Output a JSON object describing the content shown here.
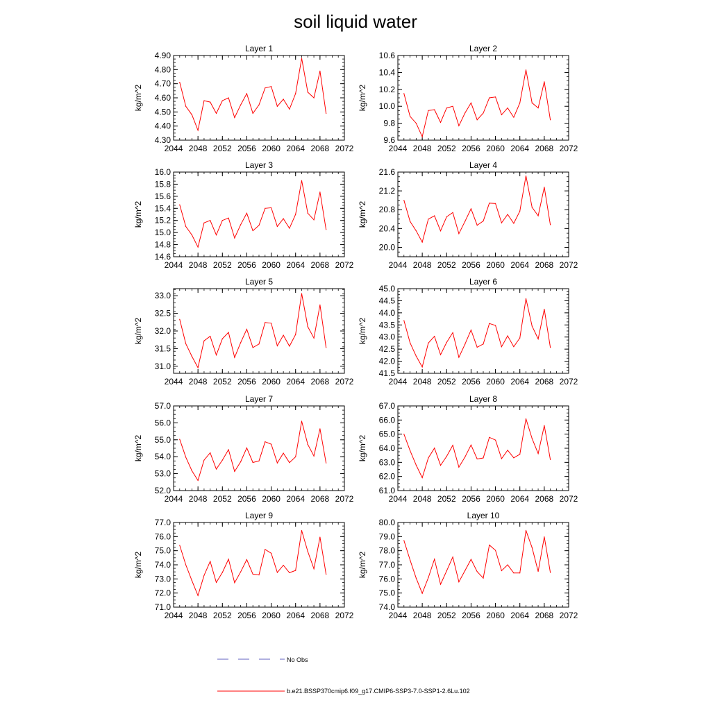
{
  "figure": {
    "title": "soil liquid water",
    "legend": [
      {
        "label": "No Obs",
        "color": "#6060c0",
        "dash": true
      },
      {
        "label": "b.e21.BSSP370cmip6.f09_g17.CMIP6-SSP3-7.0-SSP1-2.6Lu.102",
        "color": "#ff0000",
        "dash": false
      }
    ]
  },
  "chart_data": [
    {
      "type": "line",
      "title": "Layer 1",
      "ylabel": "kg/m^2",
      "xlim": [
        2044,
        2072
      ],
      "ylim": [
        4.3,
        4.9
      ],
      "xticks": [
        2044,
        2048,
        2052,
        2056,
        2060,
        2064,
        2068,
        2072
      ],
      "yticks": [
        "4.30",
        "4.40",
        "4.50",
        "4.60",
        "4.70",
        "4.80",
        "4.90"
      ],
      "color": "#ff0000",
      "x": [
        2045,
        2046,
        2047,
        2048,
        2049,
        2050,
        2051,
        2052,
        2053,
        2054,
        2055,
        2056,
        2057,
        2058,
        2059,
        2060,
        2061,
        2062,
        2063,
        2064,
        2065,
        2066,
        2067,
        2068,
        2069
      ],
      "values": [
        4.71,
        4.54,
        4.48,
        4.37,
        4.58,
        4.57,
        4.49,
        4.58,
        4.6,
        4.46,
        4.55,
        4.63,
        4.49,
        4.55,
        4.67,
        4.68,
        4.54,
        4.59,
        4.52,
        4.63,
        4.88,
        4.64,
        4.6,
        4.79,
        4.49
      ]
    },
    {
      "type": "line",
      "title": "Layer 2",
      "ylabel": "kg/m^2",
      "xlim": [
        2044,
        2072
      ],
      "ylim": [
        9.6,
        10.6
      ],
      "xticks": [
        2044,
        2048,
        2052,
        2056,
        2060,
        2064,
        2068,
        2072
      ],
      "yticks": [
        "9.6",
        "9.8",
        "10.0",
        "10.2",
        "10.4",
        "10.6"
      ],
      "color": "#ff0000",
      "x": [
        2045,
        2046,
        2047,
        2048,
        2049,
        2050,
        2051,
        2052,
        2053,
        2054,
        2055,
        2056,
        2057,
        2058,
        2059,
        2060,
        2061,
        2062,
        2063,
        2064,
        2065,
        2066,
        2067,
        2068,
        2069
      ],
      "values": [
        10.15,
        9.88,
        9.8,
        9.64,
        9.95,
        9.96,
        9.81,
        9.98,
        10.0,
        9.77,
        9.92,
        10.04,
        9.84,
        9.92,
        10.1,
        10.11,
        9.9,
        9.98,
        9.87,
        10.04,
        10.43,
        10.04,
        9.98,
        10.29,
        9.84
      ]
    },
    {
      "type": "line",
      "title": "Layer 3",
      "ylabel": "kg/m^2",
      "xlim": [
        2044,
        2072
      ],
      "ylim": [
        14.6,
        16.0
      ],
      "xticks": [
        2044,
        2048,
        2052,
        2056,
        2060,
        2064,
        2068,
        2072
      ],
      "yticks": [
        "14.6",
        "14.8",
        "15.0",
        "15.2",
        "15.4",
        "15.6",
        "15.8",
        "16.0"
      ],
      "color": "#ff0000",
      "x": [
        2045,
        2046,
        2047,
        2048,
        2049,
        2050,
        2051,
        2052,
        2053,
        2054,
        2055,
        2056,
        2057,
        2058,
        2059,
        2060,
        2061,
        2062,
        2063,
        2064,
        2065,
        2066,
        2067,
        2068,
        2069
      ],
      "values": [
        15.46,
        15.1,
        14.96,
        14.76,
        15.16,
        15.2,
        14.96,
        15.2,
        15.24,
        14.91,
        15.13,
        15.32,
        15.03,
        15.12,
        15.4,
        15.41,
        15.1,
        15.23,
        15.07,
        15.3,
        15.86,
        15.32,
        15.21,
        15.67,
        15.05
      ]
    },
    {
      "type": "line",
      "title": "Layer 4",
      "ylabel": "kg/m^2",
      "xlim": [
        2044,
        2072
      ],
      "ylim": [
        19.8,
        21.6
      ],
      "xticks": [
        2044,
        2048,
        2052,
        2056,
        2060,
        2064,
        2068,
        2072
      ],
      "yticks": [
        "20.0",
        "20.4",
        "20.8",
        "21.2",
        "21.6"
      ],
      "color": "#ff0000",
      "x": [
        2045,
        2046,
        2047,
        2048,
        2049,
        2050,
        2051,
        2052,
        2053,
        2054,
        2055,
        2056,
        2057,
        2058,
        2059,
        2060,
        2061,
        2062,
        2063,
        2064,
        2065,
        2066,
        2067,
        2068,
        2069
      ],
      "values": [
        21.0,
        20.55,
        20.35,
        20.11,
        20.6,
        20.67,
        20.35,
        20.65,
        20.74,
        20.29,
        20.55,
        20.82,
        20.47,
        20.56,
        20.94,
        20.93,
        20.52,
        20.7,
        20.51,
        20.77,
        21.52,
        20.85,
        20.67,
        21.28,
        20.48
      ]
    },
    {
      "type": "line",
      "title": "Layer 5",
      "ylabel": "kg/m^2",
      "xlim": [
        2044,
        2072
      ],
      "ylim": [
        30.8,
        33.2
      ],
      "xticks": [
        2044,
        2048,
        2052,
        2056,
        2060,
        2064,
        2068,
        2072
      ],
      "yticks": [
        "31.0",
        "31.5",
        "32.0",
        "32.5",
        "33.0"
      ],
      "color": "#ff0000",
      "x": [
        2045,
        2046,
        2047,
        2048,
        2049,
        2050,
        2051,
        2052,
        2053,
        2054,
        2055,
        2056,
        2057,
        2058,
        2059,
        2060,
        2061,
        2062,
        2063,
        2064,
        2065,
        2066,
        2067,
        2068,
        2069
      ],
      "values": [
        32.33,
        31.64,
        31.28,
        30.96,
        31.72,
        31.85,
        31.32,
        31.78,
        31.96,
        31.25,
        31.67,
        32.05,
        31.53,
        31.63,
        32.24,
        32.22,
        31.58,
        31.88,
        31.57,
        31.9,
        33.06,
        32.12,
        31.8,
        32.74,
        31.53
      ]
    },
    {
      "type": "line",
      "title": "Layer 6",
      "ylabel": "kg/m^2",
      "xlim": [
        2044,
        2072
      ],
      "ylim": [
        41.5,
        45.0
      ],
      "xticks": [
        2044,
        2048,
        2052,
        2056,
        2060,
        2064,
        2068,
        2072
      ],
      "yticks": [
        "41.5",
        "42.0",
        "42.5",
        "43.0",
        "43.5",
        "44.0",
        "44.5",
        "45.0"
      ],
      "color": "#ff0000",
      "x": [
        2045,
        2046,
        2047,
        2048,
        2049,
        2050,
        2051,
        2052,
        2053,
        2054,
        2055,
        2056,
        2057,
        2058,
        2059,
        2060,
        2061,
        2062,
        2063,
        2064,
        2065,
        2066,
        2067,
        2068,
        2069
      ],
      "values": [
        43.68,
        42.76,
        42.21,
        41.76,
        42.75,
        43.03,
        42.27,
        42.78,
        43.18,
        42.16,
        42.7,
        43.29,
        42.58,
        42.71,
        43.56,
        43.48,
        42.6,
        43.05,
        42.6,
        42.96,
        44.59,
        43.45,
        42.92,
        44.15,
        42.57
      ]
    },
    {
      "type": "line",
      "title": "Layer 7",
      "ylabel": "kg/m^2",
      "xlim": [
        2044,
        2072
      ],
      "ylim": [
        52.0,
        57.0
      ],
      "xticks": [
        2044,
        2048,
        2052,
        2056,
        2060,
        2064,
        2068,
        2072
      ],
      "yticks": [
        "52.0",
        "53.0",
        "54.0",
        "55.0",
        "56.0",
        "57.0"
      ],
      "color": "#ff0000",
      "x": [
        2045,
        2046,
        2047,
        2048,
        2049,
        2050,
        2051,
        2052,
        2053,
        2054,
        2055,
        2056,
        2057,
        2058,
        2059,
        2060,
        2061,
        2062,
        2063,
        2064,
        2065,
        2066,
        2067,
        2068,
        2069
      ],
      "values": [
        55.03,
        53.97,
        53.17,
        52.6,
        53.8,
        54.23,
        53.27,
        53.8,
        54.42,
        53.13,
        53.7,
        54.52,
        53.66,
        53.75,
        54.88,
        54.74,
        53.63,
        54.21,
        53.65,
        53.99,
        56.1,
        54.72,
        54.04,
        55.65,
        53.63
      ]
    },
    {
      "type": "line",
      "title": "Layer 8",
      "ylabel": "kg/m^2",
      "xlim": [
        2044,
        2072
      ],
      "ylim": [
        61.0,
        67.0
      ],
      "xticks": [
        2044,
        2048,
        2052,
        2056,
        2060,
        2064,
        2068,
        2072
      ],
      "yticks": [
        "61.0",
        "62.0",
        "63.0",
        "64.0",
        "65.0",
        "66.0",
        "67.0"
      ],
      "color": "#ff0000",
      "x": [
        2045,
        2046,
        2047,
        2048,
        2049,
        2050,
        2051,
        2052,
        2053,
        2054,
        2055,
        2056,
        2057,
        2058,
        2059,
        2060,
        2061,
        2062,
        2063,
        2064,
        2065,
        2066,
        2067,
        2068,
        2069
      ],
      "values": [
        65.0,
        63.83,
        62.8,
        61.91,
        63.31,
        64.01,
        62.79,
        63.43,
        64.21,
        62.66,
        63.37,
        64.23,
        63.24,
        63.31,
        64.77,
        64.58,
        63.26,
        63.86,
        63.32,
        63.57,
        66.09,
        64.69,
        63.62,
        65.61,
        63.2
      ]
    },
    {
      "type": "line",
      "title": "Layer 9",
      "ylabel": "kg/m^2",
      "xlim": [
        2044,
        2072
      ],
      "ylim": [
        71.0,
        77.0
      ],
      "xticks": [
        2044,
        2048,
        2052,
        2056,
        2060,
        2064,
        2068,
        2072
      ],
      "yticks": [
        "71.0",
        "72.0",
        "73.0",
        "74.0",
        "75.0",
        "76.0",
        "77.0"
      ],
      "color": "#ff0000",
      "x": [
        2045,
        2046,
        2047,
        2048,
        2049,
        2050,
        2051,
        2052,
        2053,
        2054,
        2055,
        2056,
        2057,
        2058,
        2059,
        2060,
        2061,
        2062,
        2063,
        2064,
        2065,
        2066,
        2067,
        2068,
        2069
      ],
      "values": [
        75.38,
        74.0,
        72.88,
        71.82,
        73.25,
        74.24,
        72.75,
        73.46,
        74.4,
        72.73,
        73.5,
        74.37,
        73.34,
        73.28,
        75.09,
        74.82,
        73.46,
        73.97,
        73.44,
        73.6,
        76.43,
        74.94,
        73.72,
        75.96,
        73.33
      ]
    },
    {
      "type": "line",
      "title": "Layer 10",
      "ylabel": "kg/m^2",
      "xlim": [
        2044,
        2072
      ],
      "ylim": [
        74.0,
        80.0
      ],
      "xticks": [
        2044,
        2048,
        2052,
        2056,
        2060,
        2064,
        2068,
        2072
      ],
      "yticks": [
        "74.0",
        "75.0",
        "76.0",
        "77.0",
        "78.0",
        "79.0",
        "80.0"
      ],
      "color": "#ff0000",
      "x": [
        2045,
        2046,
        2047,
        2048,
        2049,
        2050,
        2051,
        2052,
        2053,
        2054,
        2055,
        2056,
        2057,
        2058,
        2059,
        2060,
        2061,
        2062,
        2063,
        2064,
        2065,
        2066,
        2067,
        2068,
        2069
      ],
      "values": [
        78.72,
        77.34,
        76.05,
        74.98,
        76.09,
        77.4,
        75.62,
        76.57,
        77.55,
        75.79,
        76.58,
        77.39,
        76.52,
        76.06,
        78.4,
        78.03,
        76.58,
        77.0,
        76.42,
        76.42,
        79.44,
        78.22,
        76.53,
        78.98,
        76.46
      ]
    }
  ]
}
